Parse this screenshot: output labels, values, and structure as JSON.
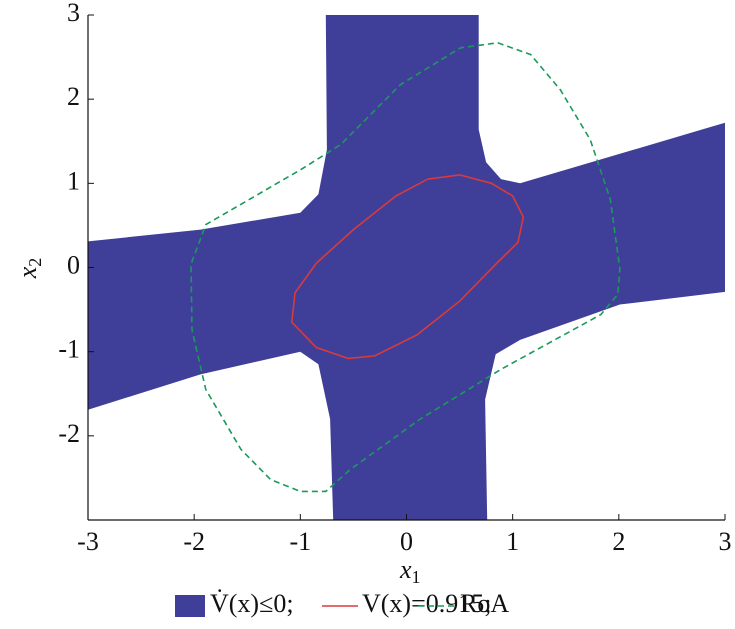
{
  "chart_data": {
    "type": "region",
    "xlim": [
      -3,
      3
    ],
    "ylim": [
      -3,
      3
    ],
    "xticks": [
      -3,
      -2,
      -1,
      0,
      1,
      2,
      3
    ],
    "yticks": [
      -2,
      -1,
      0,
      1,
      2,
      3
    ],
    "x_label": "x",
    "x_label_subscript": "1",
    "y_label": "x",
    "y_label_subscript": "2",
    "series": [
      {
        "name": "V̇(x)≤0;",
        "color": "#3f3f9a",
        "style": "fill",
        "x": [
          -0.76,
          0.68,
          0.68,
          0.75,
          0.89,
          1.07,
          3,
          3,
          2.01,
          1.07,
          0.84,
          0.74,
          0.76,
          -0.69,
          -0.72,
          -0.83,
          -1.0,
          -1.94,
          -3,
          -3,
          -1.94,
          -1.0,
          -0.83,
          -0.75
        ],
        "y": [
          3,
          3,
          1.64,
          1.25,
          1.05,
          1.0,
          1.72,
          -0.29,
          -0.44,
          -0.86,
          -1.03,
          -1.57,
          -3,
          -3,
          -1.8,
          -1.15,
          -1.0,
          -1.27,
          -1.69,
          0.31,
          0.45,
          0.65,
          0.87,
          1.4
        ]
      },
      {
        "name": "V(x)=0.915;",
        "color": "#d93a3a",
        "style": "solid",
        "x": [
          0.5,
          0.8,
          1.0,
          1.1,
          1.05,
          0.85,
          0.5,
          0.1,
          -0.3,
          -0.55,
          -0.85,
          -1.08,
          -1.05,
          -0.85,
          -0.5,
          -0.1,
          0.2
        ],
        "y": [
          1.1,
          1.0,
          0.85,
          0.6,
          0.3,
          0.05,
          -0.4,
          -0.8,
          -1.05,
          -1.08,
          -0.95,
          -0.65,
          -0.3,
          0.05,
          0.45,
          0.85,
          1.05
        ]
      },
      {
        "name": "RoA",
        "color": "#1a9a5a",
        "style": "dashed",
        "x": [
          0.86,
          1.17,
          1.45,
          1.73,
          1.92,
          2.01,
          1.99,
          1.83,
          0.89,
          0.13,
          -0.53,
          -0.76,
          -1.0,
          -1.28,
          -1.56,
          -1.89,
          -2.02,
          -2.03,
          -1.89,
          -1.0,
          -0.62,
          -0.06,
          0.51
        ],
        "y": [
          2.67,
          2.53,
          2.11,
          1.52,
          0.81,
          -0.02,
          -0.32,
          -0.56,
          -1.21,
          -1.8,
          -2.4,
          -2.66,
          -2.66,
          -2.52,
          -2.16,
          -1.45,
          -0.74,
          0.04,
          0.51,
          1.16,
          1.46,
          2.17,
          2.61
        ]
      }
    ]
  }
}
